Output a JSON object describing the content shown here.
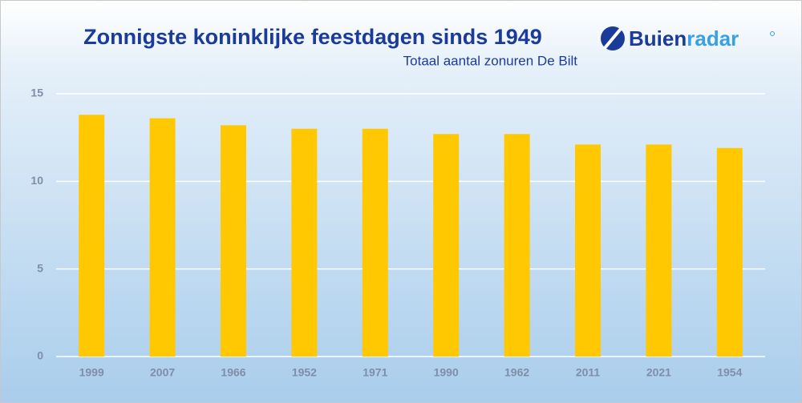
{
  "chart_data": {
    "type": "bar",
    "title": "Zonnigste koninklijke feestdagen sinds 1949",
    "subtitle": "Totaal aantal zonuren De Bilt",
    "logo": [
      "Buien",
      "radar"
    ],
    "categories": [
      "1999",
      "2007",
      "1966",
      "1952",
      "1971",
      "1990",
      "1962",
      "2011",
      "2021",
      "1954"
    ],
    "values": [
      13.8,
      13.6,
      13.2,
      13.0,
      13.0,
      12.7,
      12.7,
      12.1,
      12.1,
      11.9
    ],
    "color": "#ffc800",
    "ylim": [
      0,
      15
    ],
    "yticks": [
      0,
      5,
      10,
      15
    ],
    "grid": true
  }
}
